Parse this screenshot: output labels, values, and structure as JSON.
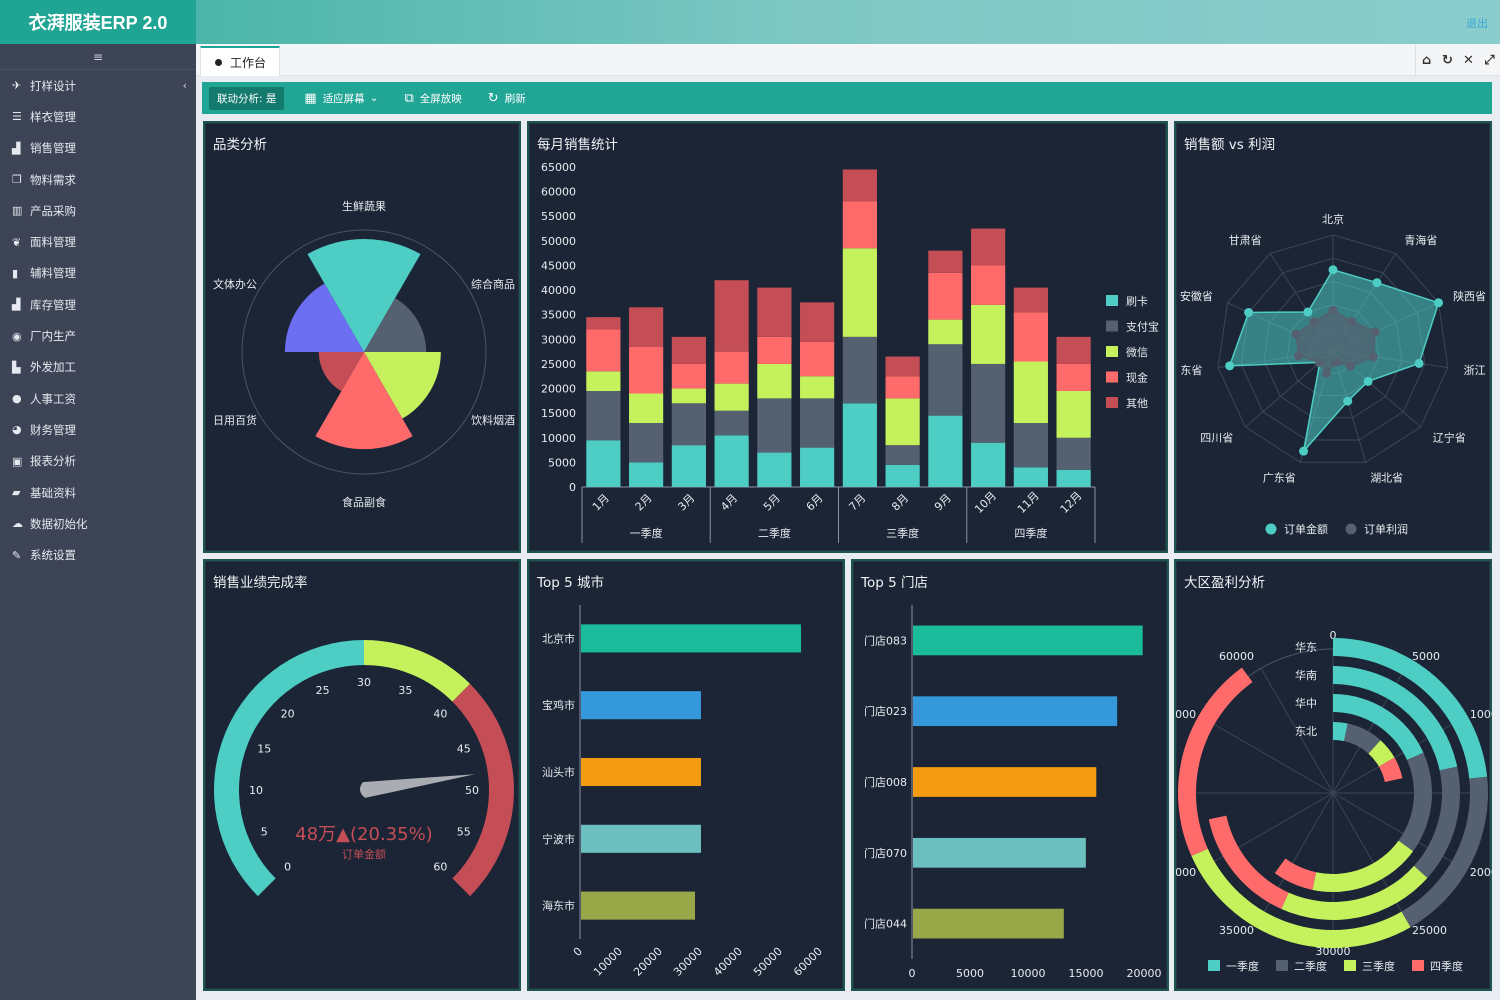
{
  "app": {
    "title": "衣湃服装ERP 2.0",
    "logout": "退出"
  },
  "sidebar": {
    "toggle_icon": "≡",
    "items": [
      {
        "label": "打样设计",
        "icon": "paper-plane-icon",
        "glyph": "✈",
        "chevron": "‹"
      },
      {
        "label": "样衣管理",
        "icon": "database-icon",
        "glyph": "☰"
      },
      {
        "label": "销售管理",
        "icon": "area-chart-icon",
        "glyph": "▟"
      },
      {
        "label": "物料需求",
        "icon": "clone-icon",
        "glyph": "❐"
      },
      {
        "label": "产品采购",
        "icon": "bar-chart-icon",
        "glyph": "▥"
      },
      {
        "label": "面料管理",
        "icon": "leaf-icon",
        "glyph": "❦"
      },
      {
        "label": "辅料管理",
        "icon": "barcode-icon",
        "glyph": "▮"
      },
      {
        "label": "库存管理",
        "icon": "area-chart-icon",
        "glyph": "▟"
      },
      {
        "label": "厂内生产",
        "icon": "eye-icon",
        "glyph": "◉"
      },
      {
        "label": "外发加工",
        "icon": "building-icon",
        "glyph": "▙"
      },
      {
        "label": "人事工资",
        "icon": "globe-icon",
        "glyph": "●"
      },
      {
        "label": "财务管理",
        "icon": "pie-chart-icon",
        "glyph": "◕"
      },
      {
        "label": "报表分析",
        "icon": "calendar-icon",
        "glyph": "▣"
      },
      {
        "label": "基础资料",
        "icon": "book-icon",
        "glyph": "▰"
      },
      {
        "label": "数据初始化",
        "icon": "cloud-icon",
        "glyph": "☁"
      },
      {
        "label": "系统设置",
        "icon": "wrench-icon",
        "glyph": "✎"
      }
    ]
  },
  "tabs": [
    {
      "label": "工作台",
      "active": true
    }
  ],
  "tab_tools": [
    {
      "name": "home-icon",
      "glyph": "⌂"
    },
    {
      "name": "refresh-icon",
      "glyph": "↻"
    },
    {
      "name": "close-icon",
      "glyph": "✕"
    },
    {
      "name": "fullscreen-icon",
      "glyph": "⤢"
    }
  ],
  "toolbar": {
    "linkage": "联动分析: 是",
    "fit": "适应屏幕",
    "fit_icon": "▦",
    "fit_caret": "⌄",
    "fullscreen": "全屏放映",
    "fullscreen_icon": "⧉",
    "refresh": "刷新",
    "refresh_icon": "↻"
  },
  "panels": {
    "category": "品类分析",
    "monthly": "每月销售统计",
    "radar": "销售额 vs 利润",
    "gauge": "销售业绩完成率",
    "top_city": "Top 5 城市",
    "top_store": "Top 5 门店",
    "region": "大区盈利分析"
  },
  "chart_data": [
    {
      "id": "category",
      "type": "pie",
      "subtype": "nightingale-rose",
      "categories": [
        {
          "name": "生鲜蔬果",
          "value": 100,
          "color": "#4ecdc4"
        },
        {
          "name": "综合商品",
          "value": 55,
          "color": "#556170"
        },
        {
          "name": "饮料烟酒",
          "value": 68,
          "color": "#c5f25c"
        },
        {
          "name": "食品副食",
          "value": 86,
          "color": "#ff6b6b"
        },
        {
          "name": "日用百货",
          "value": 40,
          "color": "#c44d56"
        },
        {
          "name": "文体办公",
          "value": 70,
          "color": "#6c6ff2"
        }
      ],
      "labels_shown": [
        "生鲜蔬果",
        "综合商品",
        "饮料烟酒",
        "食品副食",
        "日用百货",
        "文体办公"
      ],
      "labels_display": [
        "生鲜蔬果",
        "综合商品",
        "饮料烟酒",
        "食品副食",
        "日用百货",
        "文体办公"
      ]
    },
    {
      "id": "monthly",
      "type": "bar",
      "stacked": true,
      "categories": [
        "1月",
        "2月",
        "3月",
        "4月",
        "5月",
        "6月",
        "7月",
        "8月",
        "9月",
        "10月",
        "11月",
        "12月"
      ],
      "quarters": [
        "一季度",
        "二季度",
        "三季度",
        "四季度"
      ],
      "ylim": [
        0,
        65000
      ],
      "yticks": [
        0,
        5000,
        10000,
        15000,
        20000,
        25000,
        30000,
        35000,
        40000,
        45000,
        50000,
        55000,
        60000,
        65000
      ],
      "series": [
        {
          "name": "刷卡",
          "color": "#4ecdc4",
          "values": [
            9500,
            5000,
            8500,
            10500,
            7000,
            8000,
            17000,
            4500,
            14500,
            9000,
            4000,
            3500
          ]
        },
        {
          "name": "支付宝",
          "color": "#556170",
          "values": [
            10000,
            8000,
            8500,
            5000,
            11000,
            10000,
            13500,
            4000,
            14500,
            16000,
            9000,
            6500
          ]
        },
        {
          "name": "微信",
          "color": "#c5f25c",
          "values": [
            4000,
            6000,
            3000,
            5500,
            7000,
            4500,
            18000,
            9500,
            5000,
            12000,
            12500,
            9500
          ]
        },
        {
          "name": "现金",
          "color": "#ff6b6b",
          "values": [
            8500,
            9500,
            5000,
            6500,
            5500,
            7000,
            9500,
            4500,
            9500,
            8000,
            10000,
            5500
          ]
        },
        {
          "name": "其他",
          "color": "#c44d56",
          "values": [
            2500,
            8000,
            5500,
            14500,
            10000,
            8000,
            6500,
            4000,
            4500,
            7500,
            5000,
            5500
          ]
        }
      ]
    },
    {
      "id": "radar",
      "type": "radar",
      "indicators": [
        "北京",
        "青海省",
        "陕西省",
        "浙江",
        "辽宁省",
        "湖北省",
        "广东省",
        "四川省",
        "东省",
        "安徽省",
        "甘肃省"
      ],
      "max": 100,
      "series": [
        {
          "name": "订单金额",
          "color": "#4ecdc4",
          "values": [
            70,
            70,
            100,
            75,
            40,
            45,
            90,
            15,
            90,
            80,
            40
          ]
        },
        {
          "name": "订单利润",
          "color": "#556170",
          "values": [
            35,
            30,
            40,
            35,
            20,
            10,
            20,
            15,
            30,
            35,
            30
          ]
        }
      ]
    },
    {
      "id": "gauge",
      "type": "gauge",
      "min": 0,
      "max": 60,
      "ticks": [
        0,
        5,
        10,
        15,
        20,
        25,
        30,
        35,
        40,
        45,
        50,
        55,
        60
      ],
      "value": 48.2,
      "bands": [
        {
          "to": 30,
          "color": "#4ecdc4"
        },
        {
          "to": 40,
          "color": "#c5f25c"
        },
        {
          "to": 60,
          "color": "#c44d56"
        }
      ],
      "detail": "48万▲(20.35%)",
      "detail_label": "订单金额"
    },
    {
      "id": "top_city",
      "type": "bar",
      "orientation": "horizontal",
      "categories": [
        "北京市",
        "宝鸡市",
        "汕头市",
        "宁波市",
        "海东市"
      ],
      "values": [
        55000,
        30000,
        30000,
        30000,
        28500
      ],
      "colors": [
        "#1abc9c",
        "#3498db",
        "#f39c12",
        "#6bbfbf",
        "#98a848"
      ],
      "xlim": [
        0,
        60000
      ],
      "xticks": [
        0,
        10000,
        20000,
        30000,
        40000,
        50000,
        60000
      ]
    },
    {
      "id": "top_store",
      "type": "bar",
      "orientation": "horizontal",
      "categories": [
        "门店083",
        "门店023",
        "门店008",
        "门店070",
        "门店044"
      ],
      "values": [
        19800,
        17600,
        15800,
        14900,
        13000
      ],
      "colors": [
        "#1abc9c",
        "#3498db",
        "#f39c12",
        "#6bbfbf",
        "#98a848"
      ],
      "xlim": [
        0,
        20000
      ],
      "xticks": [
        0,
        5000,
        10000,
        15000,
        20000
      ]
    },
    {
      "id": "region",
      "type": "bar",
      "subtype": "polar-stacked",
      "categories": [
        "华东",
        "华南",
        "华中",
        "东北"
      ],
      "max": 60000,
      "angle_ticks": [
        0,
        5000,
        10000,
        15000,
        20000,
        25000,
        30000,
        35000,
        40000,
        45000,
        50000,
        55000,
        60000
      ],
      "series": [
        {
          "name": "一季度",
          "color": "#4ecdc4",
          "values": [
            14000,
            13000,
            11000,
            2000
          ]
        },
        {
          "name": "二季度",
          "color": "#556170",
          "values": [
            11000,
            9000,
            10000,
            5000
          ]
        },
        {
          "name": "三季度",
          "color": "#c5f25c",
          "values": [
            16000,
            12000,
            11000,
            3000
          ]
        },
        {
          "name": "四季度",
          "color": "#ff6b6b",
          "values": [
            13000,
            9000,
            4000,
            3000
          ]
        }
      ]
    }
  ]
}
